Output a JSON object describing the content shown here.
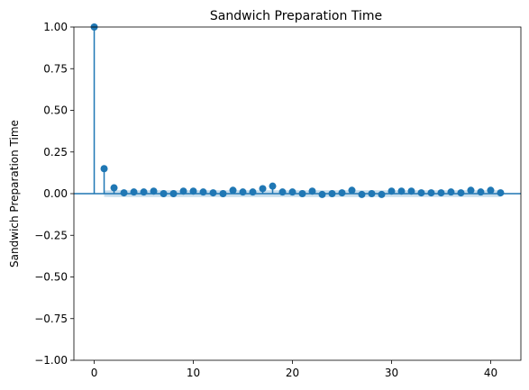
{
  "chart_data": {
    "type": "stem",
    "title": "Sandwich Preparation Time",
    "xlabel": "",
    "ylabel": "Sandwich Preparation Time",
    "xlim": [
      -2.05,
      43.05
    ],
    "ylim": [
      -1.0,
      1.0
    ],
    "xticks": [
      0,
      10,
      20,
      30,
      40
    ],
    "yticks": [
      -1.0,
      -0.75,
      -0.5,
      -0.25,
      0.0,
      0.25,
      0.5,
      0.75,
      1.0
    ],
    "ytick_labels": [
      "−1.00",
      "−0.75",
      "−0.50",
      "−0.25",
      "0.00",
      "0.25",
      "0.50",
      "0.75",
      "1.00"
    ],
    "xtick_labels": [
      "0",
      "10",
      "20",
      "30",
      "40"
    ],
    "lags": [
      0,
      1,
      2,
      3,
      4,
      5,
      6,
      7,
      8,
      9,
      10,
      11,
      12,
      13,
      14,
      15,
      16,
      17,
      18,
      19,
      20,
      21,
      22,
      23,
      24,
      25,
      26,
      27,
      28,
      29,
      30,
      31,
      32,
      33,
      34,
      35,
      36,
      37,
      38,
      39,
      40,
      41
    ],
    "values": [
      1.0,
      0.15,
      0.035,
      0.005,
      0.01,
      0.01,
      0.015,
      0.0,
      0.0,
      0.015,
      0.015,
      0.01,
      0.005,
      0.0,
      0.02,
      0.01,
      0.01,
      0.03,
      0.045,
      0.01,
      0.01,
      0.0,
      0.015,
      -0.005,
      0.0,
      0.005,
      0.02,
      -0.005,
      0.0,
      -0.005,
      0.015,
      0.015,
      0.015,
      0.005,
      0.005,
      0.005,
      0.01,
      0.005,
      0.02,
      0.01,
      0.02,
      0.005
    ],
    "confint_upper": [
      0.0,
      0.019,
      0.02,
      0.02,
      0.02,
      0.02,
      0.02,
      0.02,
      0.02,
      0.02,
      0.02,
      0.02,
      0.02,
      0.02,
      0.02,
      0.02,
      0.02,
      0.02,
      0.02,
      0.02,
      0.02,
      0.02,
      0.02,
      0.02,
      0.02,
      0.02,
      0.02,
      0.02,
      0.02,
      0.02,
      0.02,
      0.02,
      0.02,
      0.02,
      0.02,
      0.02,
      0.02,
      0.02,
      0.02,
      0.02,
      0.02,
      0.02
    ],
    "zero_line": true,
    "grid": false,
    "colors": {
      "stem": "#1f77b4",
      "confint": "#1f77b4"
    }
  }
}
